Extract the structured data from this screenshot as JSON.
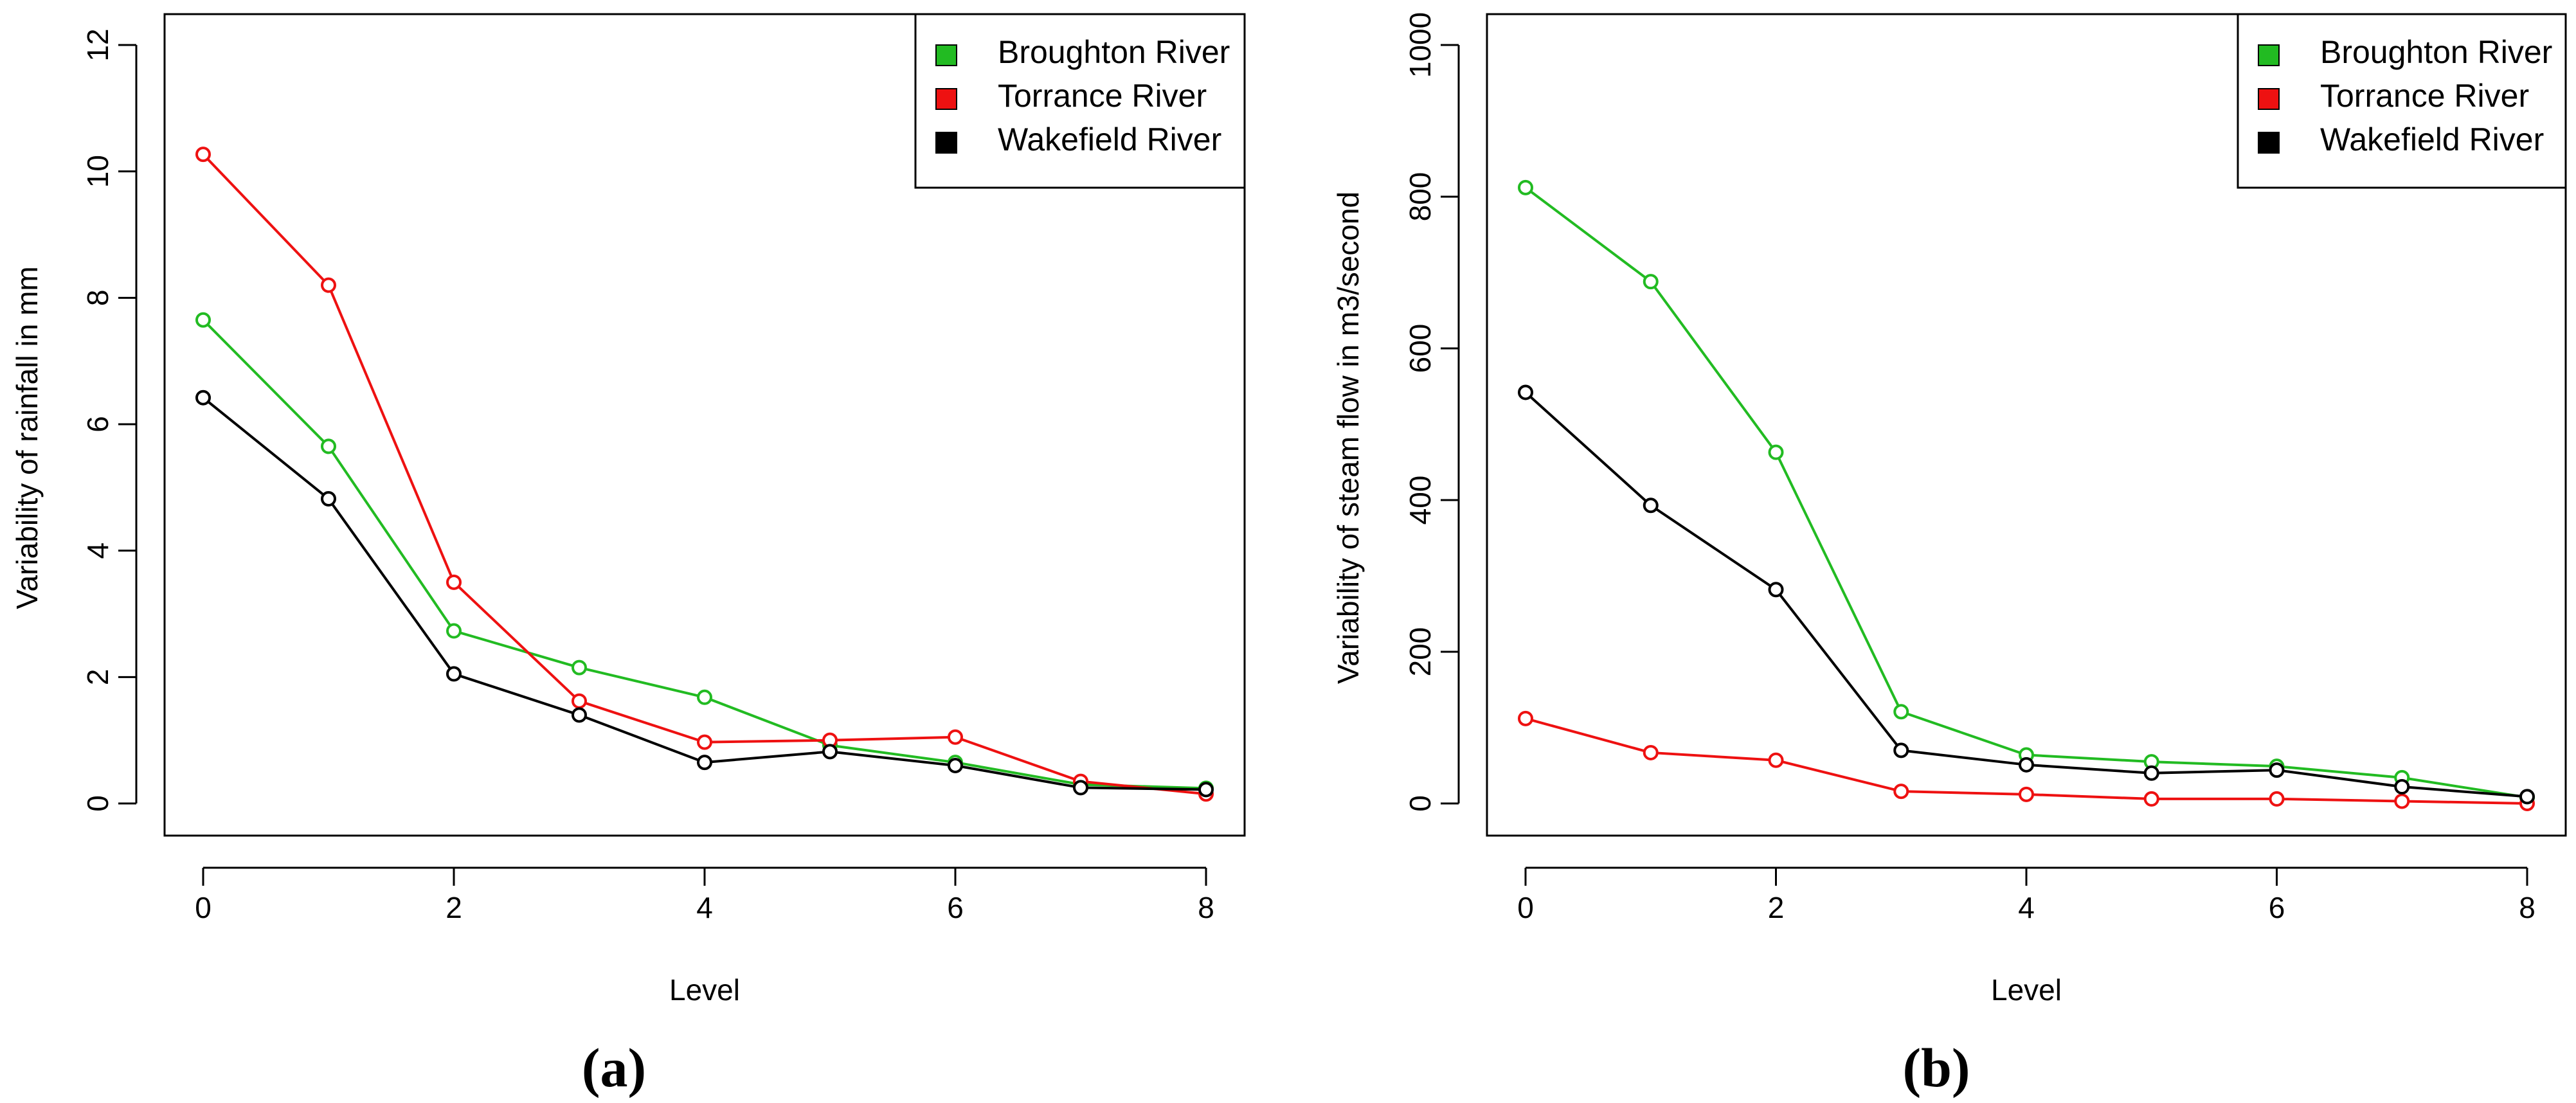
{
  "chart_data": [
    {
      "type": "line",
      "panel_label": "(a)",
      "xlabel": "Level",
      "ylabel": "Variability of rainfall in mm",
      "xlim": [
        0,
        8
      ],
      "ylim": [
        0,
        12
      ],
      "x_ticks": [
        0,
        2,
        4,
        6,
        8
      ],
      "y_ticks": [
        0,
        2,
        4,
        6,
        8,
        10,
        12
      ],
      "x": [
        0,
        1,
        2,
        3,
        4,
        5,
        6,
        7,
        8
      ],
      "legend_position": "top-right",
      "series": [
        {
          "name": "Broughton River",
          "color": "#22bb22",
          "values": [
            7.65,
            5.65,
            2.73,
            2.15,
            1.68,
            0.92,
            0.65,
            0.3,
            0.24
          ]
        },
        {
          "name": "Torrance River",
          "color": "#ee1111",
          "values": [
            10.27,
            8.2,
            3.5,
            1.62,
            0.97,
            1.0,
            1.05,
            0.35,
            0.15
          ]
        },
        {
          "name": "Wakefield River",
          "color": "#000000",
          "values": [
            6.42,
            4.82,
            2.05,
            1.4,
            0.65,
            0.82,
            0.6,
            0.25,
            0.22
          ]
        }
      ]
    },
    {
      "type": "line",
      "panel_label": "(b)",
      "xlabel": "Level",
      "ylabel": "Variability of steam flow in m3/second",
      "xlim": [
        0,
        8
      ],
      "ylim": [
        0,
        1000
      ],
      "x_ticks": [
        0,
        2,
        4,
        6,
        8
      ],
      "y_ticks": [
        0,
        200,
        400,
        600,
        800,
        1000
      ],
      "x": [
        0,
        1,
        2,
        3,
        4,
        5,
        6,
        7,
        8
      ],
      "legend_position": "top-right",
      "series": [
        {
          "name": "Broughton River",
          "color": "#22bb22",
          "values": [
            812,
            688,
            463,
            121,
            64,
            55,
            49,
            34,
            8
          ]
        },
        {
          "name": "Torrance River",
          "color": "#ee1111",
          "values": [
            112,
            67,
            57,
            16,
            12,
            6,
            6,
            3,
            0
          ]
        },
        {
          "name": "Wakefield River",
          "color": "#000000",
          "values": [
            542,
            393,
            282,
            70,
            51,
            40,
            44,
            22,
            9
          ]
        }
      ]
    }
  ]
}
